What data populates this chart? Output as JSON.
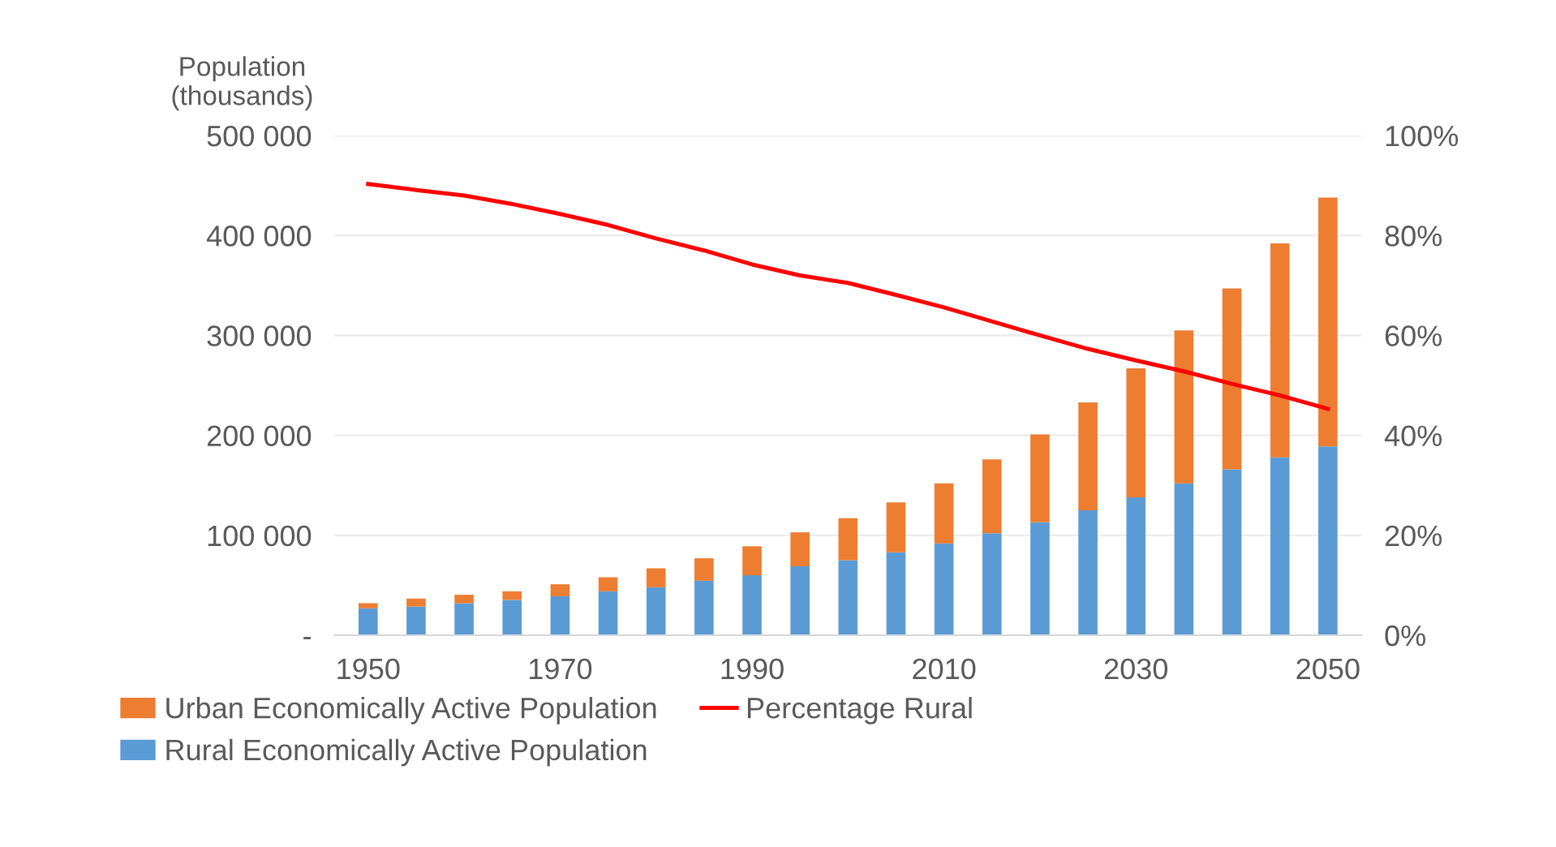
{
  "chart_data": {
    "type": "bar",
    "stacked": true,
    "ylabel": "Population\n(thousands)",
    "categories": [
      "1950",
      null,
      null,
      null,
      "1970",
      null,
      null,
      null,
      "1990",
      null,
      null,
      null,
      "2010",
      null,
      null,
      null,
      "2030",
      null,
      null,
      null,
      "2050"
    ],
    "series": [
      {
        "name": "Rural Economically Active Population",
        "color": "#5b9bd5",
        "values": [
          27000,
          28700,
          32000,
          35400,
          39000,
          44000,
          48000,
          54500,
          60000,
          69000,
          75000,
          83000,
          92000,
          102000,
          113000,
          125000,
          138000,
          152000,
          166000,
          178000,
          189000
        ]
      },
      {
        "name": "Urban Economically Active Population",
        "color": "#ed7d31",
        "values": [
          5000,
          8000,
          8500,
          8600,
          12000,
          14000,
          19000,
          22500,
          29000,
          34000,
          42000,
          50000,
          60000,
          74000,
          88000,
          108000,
          129000,
          153000,
          181000,
          214000,
          249000
        ]
      },
      {
        "name": "Percentage Rural",
        "type": "line",
        "axis": "y2",
        "color": "#ff0000",
        "values": [
          90.3,
          89.1,
          88,
          86.3,
          84.3,
          82.1,
          79.4,
          77,
          74.2,
          72,
          70.5,
          68.1,
          65.6,
          62.8,
          60,
          57.3,
          55,
          52.8,
          50.3,
          48,
          45.3
        ]
      }
    ],
    "ylim": [
      0,
      500000
    ],
    "yticks": [
      {
        "value": 0,
        "label": "-"
      },
      {
        "value": 100000,
        "label": "100 000"
      },
      {
        "value": 200000,
        "label": "200 000"
      },
      {
        "value": 300000,
        "label": "300 000"
      },
      {
        "value": 400000,
        "label": "400 000"
      },
      {
        "value": 500000,
        "label": "500 000"
      }
    ],
    "y2lim": [
      0,
      100
    ],
    "y2ticks": [
      {
        "value": 0,
        "label": "0%"
      },
      {
        "value": 20,
        "label": "20%"
      },
      {
        "value": 40,
        "label": "40%"
      },
      {
        "value": 60,
        "label": "60%"
      },
      {
        "value": 80,
        "label": "80%"
      },
      {
        "value": 100,
        "label": "100%"
      }
    ],
    "grid": "y",
    "legend": "bottom",
    "marker": "none",
    "line_style": "solid"
  }
}
